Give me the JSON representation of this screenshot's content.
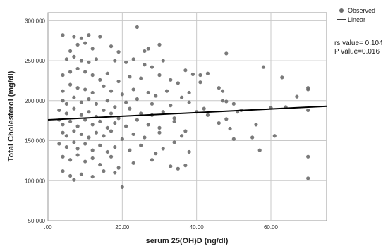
{
  "chart_data": {
    "type": "scatter",
    "title": "",
    "xlabel": "serum 25(OH)D (ng/dl)",
    "ylabel": "Total Cholesterol (mg/dl)",
    "xlim": [
      0,
      75
    ],
    "ylim": [
      50,
      310
    ],
    "grid": true,
    "legend_position": "top-right",
    "x_ticks": [
      0,
      20,
      40,
      60
    ],
    "x_tick_labels": [
      ".00",
      "20.00",
      "40.00",
      "60.00"
    ],
    "y_ticks": [
      50,
      100,
      150,
      200,
      250,
      300
    ],
    "y_tick_labels": [
      "50.000",
      "100.000",
      "150.000",
      "200.000",
      "250.000",
      "300.000"
    ],
    "series": [
      {
        "name": "Observed",
        "color": "#6b6b6b",
        "points": [
          [
            4,
            282
          ],
          [
            7,
            280
          ],
          [
            9,
            278
          ],
          [
            11,
            282
          ],
          [
            8,
            270
          ],
          [
            10,
            272
          ],
          [
            6,
            262
          ],
          [
            12,
            265
          ],
          [
            14,
            280
          ],
          [
            17,
            268
          ],
          [
            19,
            261
          ],
          [
            24,
            292
          ],
          [
            26,
            262
          ],
          [
            27,
            265
          ],
          [
            30,
            270
          ],
          [
            48,
            259
          ],
          [
            5,
            252
          ],
          [
            7,
            255
          ],
          [
            9,
            250
          ],
          [
            11,
            248
          ],
          [
            13,
            252
          ],
          [
            18,
            250
          ],
          [
            21,
            248
          ],
          [
            23,
            252
          ],
          [
            26,
            245
          ],
          [
            28,
            242
          ],
          [
            31,
            250
          ],
          [
            37,
            238
          ],
          [
            39,
            233
          ],
          [
            41,
            232
          ],
          [
            43,
            234
          ],
          [
            58,
            242
          ],
          [
            63,
            229
          ],
          [
            4,
            232
          ],
          [
            6,
            236
          ],
          [
            8,
            240
          ],
          [
            10,
            236
          ],
          [
            12,
            232
          ],
          [
            14,
            226
          ],
          [
            16,
            234
          ],
          [
            19,
            224
          ],
          [
            22,
            230
          ],
          [
            25,
            228
          ],
          [
            30,
            232
          ],
          [
            33,
            226
          ],
          [
            35,
            222
          ],
          [
            41,
            223
          ],
          [
            46,
            216
          ],
          [
            47,
            212
          ],
          [
            4,
            212
          ],
          [
            6,
            220
          ],
          [
            8,
            216
          ],
          [
            10,
            214
          ],
          [
            12,
            210
          ],
          [
            15,
            218
          ],
          [
            17,
            212
          ],
          [
            20,
            208
          ],
          [
            23,
            214
          ],
          [
            27,
            210
          ],
          [
            29,
            206
          ],
          [
            32,
            212
          ],
          [
            36,
            204
          ],
          [
            38,
            210
          ],
          [
            47,
            200
          ],
          [
            48,
            199
          ],
          [
            50,
            196
          ],
          [
            67,
            205
          ],
          [
            70,
            214
          ],
          [
            70,
            216
          ],
          [
            4,
            200
          ],
          [
            5,
            196
          ],
          [
            7,
            204
          ],
          [
            9,
            198
          ],
          [
            11,
            202
          ],
          [
            13,
            196
          ],
          [
            16,
            200
          ],
          [
            18,
            192
          ],
          [
            21,
            198
          ],
          [
            24,
            202
          ],
          [
            28,
            196
          ],
          [
            33,
            194
          ],
          [
            38,
            198
          ],
          [
            42,
            190
          ],
          [
            51,
            186
          ],
          [
            60,
            191
          ],
          [
            64,
            192
          ],
          [
            70,
            188
          ],
          [
            3,
            188
          ],
          [
            5,
            184
          ],
          [
            7,
            190
          ],
          [
            9,
            182
          ],
          [
            11,
            186
          ],
          [
            13,
            180
          ],
          [
            15,
            188
          ],
          [
            17,
            184
          ],
          [
            19,
            178
          ],
          [
            22,
            190
          ],
          [
            25,
            184
          ],
          [
            28,
            182
          ],
          [
            31,
            186
          ],
          [
            34,
            178
          ],
          [
            40,
            186
          ],
          [
            43,
            182
          ],
          [
            48,
            177
          ],
          [
            52,
            188
          ],
          [
            3,
            176
          ],
          [
            4,
            170
          ],
          [
            6,
            174
          ],
          [
            8,
            168
          ],
          [
            10,
            176
          ],
          [
            12,
            170
          ],
          [
            14,
            174
          ],
          [
            16,
            166
          ],
          [
            18,
            172
          ],
          [
            21,
            168
          ],
          [
            24,
            176
          ],
          [
            27,
            170
          ],
          [
            30,
            166
          ],
          [
            34,
            174
          ],
          [
            37,
            162
          ],
          [
            46,
            172
          ],
          [
            49,
            165
          ],
          [
            56,
            170
          ],
          [
            4,
            160
          ],
          [
            5,
            156
          ],
          [
            7,
            162
          ],
          [
            9,
            158
          ],
          [
            11,
            154
          ],
          [
            13,
            160
          ],
          [
            15,
            156
          ],
          [
            17,
            162
          ],
          [
            20,
            152
          ],
          [
            23,
            158
          ],
          [
            26,
            154
          ],
          [
            30,
            160
          ],
          [
            34,
            148
          ],
          [
            36,
            156
          ],
          [
            50,
            152
          ],
          [
            55,
            154
          ],
          [
            61,
            156
          ],
          [
            3,
            146
          ],
          [
            5,
            142
          ],
          [
            7,
            148
          ],
          [
            8,
            140
          ],
          [
            10,
            146
          ],
          [
            12,
            138
          ],
          [
            14,
            144
          ],
          [
            16,
            136
          ],
          [
            18,
            142
          ],
          [
            22,
            138
          ],
          [
            25,
            144
          ],
          [
            29,
            134
          ],
          [
            31,
            140
          ],
          [
            38,
            136
          ],
          [
            57,
            138
          ],
          [
            4,
            130
          ],
          [
            6,
            126
          ],
          [
            8,
            132
          ],
          [
            10,
            124
          ],
          [
            12,
            128
          ],
          [
            14,
            120
          ],
          [
            17,
            130
          ],
          [
            19,
            116
          ],
          [
            23,
            122
          ],
          [
            28,
            126
          ],
          [
            33,
            118
          ],
          [
            37,
            119
          ],
          [
            70,
            130
          ],
          [
            4,
            112
          ],
          [
            6,
            106
          ],
          [
            7,
            101
          ],
          [
            9,
            108
          ],
          [
            12,
            105
          ],
          [
            15,
            112
          ],
          [
            18,
            110
          ],
          [
            20,
            92
          ],
          [
            35,
            115
          ],
          [
            70,
            103
          ]
        ]
      }
    ],
    "lines": [
      {
        "name": "Linear",
        "color": "#000000",
        "x": [
          0,
          75
        ],
        "y": [
          176,
          193
        ]
      }
    ],
    "annotations": [
      {
        "text": "rs value= 0.104"
      },
      {
        "text": "P value=0.016"
      }
    ]
  }
}
